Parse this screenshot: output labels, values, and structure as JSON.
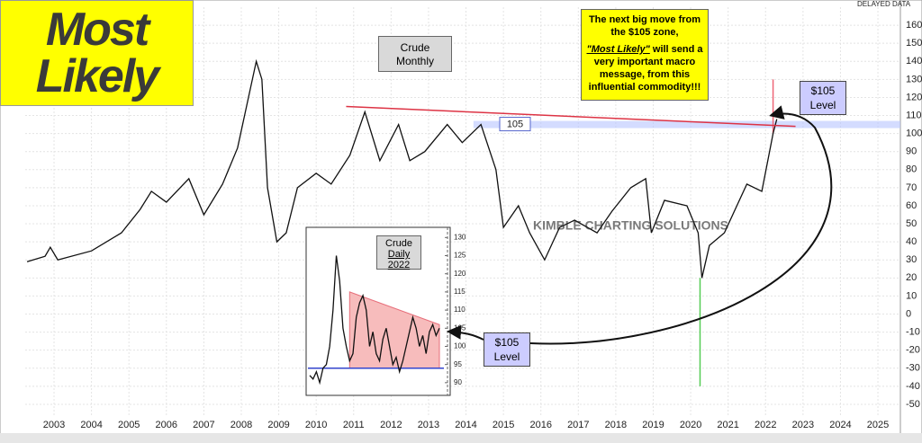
{
  "logo": {
    "line1": "Most",
    "line2": "Likely"
  },
  "delayed": "DELAYED DATA",
  "watermark": "KIMBLE CHARTING SOLUTIONS",
  "callout": {
    "line1": "The next big move from the $105 zone,",
    "emphasis": "\"Most Likely\"",
    "rest": " will send a very important macro message, from this influential commodity!!!"
  },
  "level_boxes": [
    {
      "line1": "$105",
      "line2": "Level"
    },
    {
      "line1": "$105",
      "line2": "Level"
    }
  ],
  "chart_data": [
    {
      "type": "line",
      "title": "Crude Monthly",
      "color": "#111111",
      "x": [
        2002.28,
        2002.76,
        2002.9,
        2003.1,
        2004.0,
        2004.8,
        2005.3,
        2005.6,
        2006.0,
        2006.6,
        2007.0,
        2007.5,
        2007.9,
        2008.4,
        2008.55,
        2008.7,
        2008.95,
        2009.2,
        2009.5,
        2010.0,
        2010.4,
        2010.9,
        2011.3,
        2011.7,
        2012.2,
        2012.5,
        2012.9,
        2013.5,
        2013.9,
        2014.4,
        2014.8,
        2015.0,
        2015.4,
        2015.7,
        2016.1,
        2016.5,
        2016.9,
        2017.5,
        2017.9,
        2018.4,
        2018.8,
        2018.95,
        2019.3,
        2019.9,
        2020.2,
        2020.3,
        2020.5,
        2020.9,
        2021.5,
        2021.9,
        2022.2,
        2022.3
      ],
      "values": [
        29,
        32,
        37,
        30,
        35,
        45,
        58,
        68,
        62,
        75,
        55,
        72,
        92,
        140,
        130,
        70,
        40,
        45,
        70,
        78,
        72,
        88,
        112,
        85,
        105,
        85,
        90,
        105,
        95,
        105,
        80,
        48,
        60,
        45,
        30,
        48,
        52,
        45,
        57,
        70,
        75,
        45,
        63,
        60,
        45,
        20,
        38,
        45,
        72,
        68,
        100,
        108
      ],
      "level": {
        "value": 105,
        "label": "105"
      },
      "resistance": {
        "x": [
          2010.8,
          2022.8
        ],
        "values": [
          115,
          104
        ]
      },
      "low_wick": {
        "x": 2020.25,
        "values": [
          20,
          -40
        ]
      },
      "high_wick": {
        "x": 2022.2,
        "values": [
          100,
          130
        ]
      },
      "xlim": [
        2002.23,
        2025.6
      ],
      "xticks": [
        2003,
        2004,
        2005,
        2006,
        2007,
        2008,
        2009,
        2010,
        2011,
        2012,
        2013,
        2014,
        2015,
        2016,
        2017,
        2018,
        2019,
        2020,
        2021,
        2022,
        2023,
        2024,
        2025
      ],
      "ylim": [
        -56,
        170
      ],
      "yticks": [
        -50,
        -40,
        -30,
        -20,
        -10,
        0,
        10,
        20,
        30,
        40,
        50,
        60,
        70,
        80,
        90,
        100,
        110,
        120,
        130,
        140,
        150,
        160
      ],
      "grid": true
    },
    {
      "type": "line",
      "title": "Crude",
      "subtitle": "Daily",
      "year": "2022",
      "color": "#111111",
      "values": [
        92,
        91,
        93,
        90,
        94,
        95,
        100,
        110,
        125,
        118,
        105,
        100,
        96,
        98,
        108,
        112,
        114,
        110,
        100,
        104,
        98,
        96,
        102,
        105,
        100,
        95,
        97,
        93,
        96,
        100,
        104,
        108,
        105,
        100,
        103,
        98,
        104,
        106,
        103,
        105
      ],
      "resistance": {
        "x": [
          12,
          39
        ],
        "values": [
          115,
          106
        ]
      },
      "support": 94,
      "ylim": [
        86.5,
        132.8
      ],
      "yticks": [
        90,
        95,
        100,
        105,
        110,
        115,
        120,
        125,
        130
      ]
    }
  ]
}
